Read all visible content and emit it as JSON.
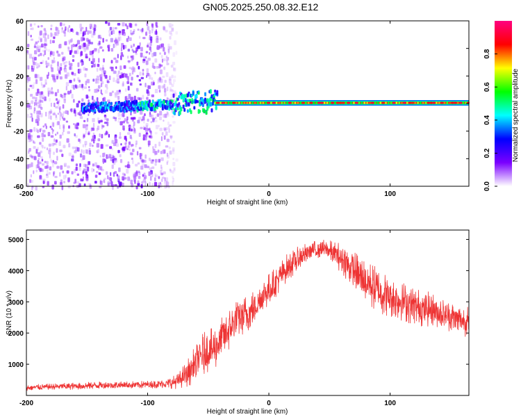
{
  "title": "GN05.2025.250.08.32.E12",
  "chart_data": [
    {
      "type": "heatmap",
      "title": "GN05.2025.250.08.32.E12",
      "xlabel": "Height of straight line (km)",
      "ylabel": "Frequency (Hz)",
      "xlim": [
        -200,
        165
      ],
      "ylim": [
        -60,
        60
      ],
      "xticks": [
        -200,
        -100,
        0,
        100
      ],
      "yticks": [
        60,
        40,
        20,
        0,
        -20,
        -40,
        -60
      ],
      "xtick_labels": [
        "-200",
        "-100",
        "0",
        "100"
      ],
      "ytick_labels": [
        "60",
        "40",
        "20",
        "0",
        "-20",
        "-40",
        "-60"
      ],
      "main_line_frequency_hz": 0.5,
      "main_line_onset_km": -45,
      "noise_region_km": [
        -200,
        -85
      ],
      "colorbar": {
        "label": "Normalized spectral amplitude",
        "range": [
          0,
          1
        ],
        "ticks": [
          0.0,
          0.2,
          0.4,
          0.6,
          0.8
        ],
        "tick_labels": [
          "0.0",
          "0.2",
          "0.4",
          "0.6",
          "0.8"
        ],
        "colors": [
          "#ffffff",
          "#7b00ff",
          "#0000ff",
          "#00ffff",
          "#00ff00",
          "#ffff00",
          "#ff0000",
          "#ff0080"
        ]
      }
    },
    {
      "type": "line",
      "xlabel": "Height of straight line (km)",
      "ylabel": "SNR (10 * v/v)",
      "xlim": [
        -200,
        165
      ],
      "ylim": [
        0,
        5300
      ],
      "xticks": [
        -200,
        -100,
        0,
        100
      ],
      "yticks": [
        1000,
        2000,
        3000,
        4000,
        5000
      ],
      "xtick_labels": [
        "-200",
        "-100",
        "0",
        "100"
      ],
      "ytick_labels": [
        "1000",
        "2000",
        "3000",
        "4000",
        "5000"
      ],
      "color": "#ee3333",
      "series": [
        {
          "name": "SNR",
          "x": [
            -200,
            -180,
            -160,
            -140,
            -120,
            -100,
            -85,
            -75,
            -65,
            -55,
            -45,
            -35,
            -25,
            -15,
            -5,
            5,
            15,
            25,
            35,
            45,
            55,
            65,
            75,
            85,
            95,
            105,
            115,
            125,
            135,
            145,
            155,
            165
          ],
          "y": [
            250,
            280,
            300,
            330,
            330,
            350,
            380,
            450,
            800,
            1300,
            1500,
            2000,
            2500,
            2700,
            3200,
            3600,
            4100,
            4400,
            4650,
            4700,
            4550,
            4200,
            3800,
            3500,
            3250,
            3100,
            2950,
            2800,
            2750,
            2600,
            2450,
            2350
          ],
          "noise_amplitude": [
            100,
            100,
            120,
            120,
            120,
            130,
            150,
            250,
            500,
            700,
            700,
            700,
            650,
            600,
            550,
            500,
            450,
            400,
            300,
            300,
            400,
            600,
            700,
            750,
            700,
            650,
            650,
            600,
            550,
            500,
            500,
            500
          ]
        }
      ]
    }
  ]
}
